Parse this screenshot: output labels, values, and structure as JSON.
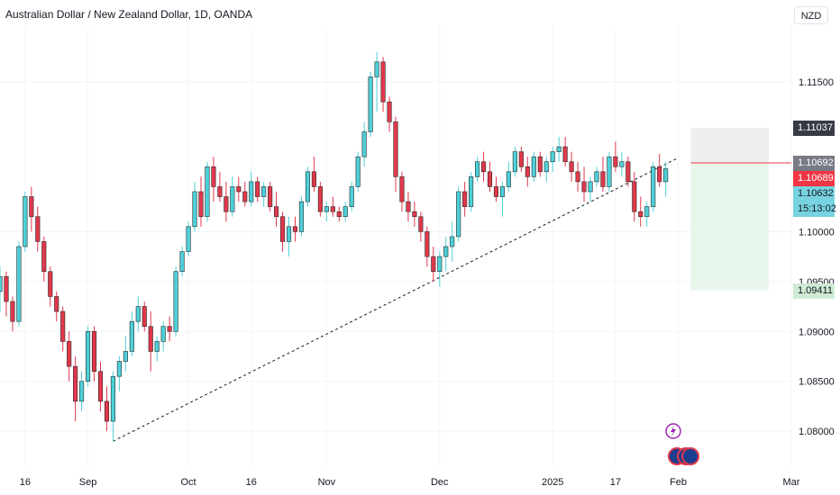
{
  "title": "Australian Dollar / New Zealand Dollar, 1D, OANDA",
  "currency": "NZD",
  "chart_data": {
    "type": "candlestick",
    "ylim": [
      1.0765,
      1.1205
    ],
    "y_ticks": [
      {
        "value": 1.115,
        "label": "1.11500"
      },
      {
        "value": 1.1,
        "label": "1.10000"
      },
      {
        "value": 1.095,
        "label": "1.09500"
      },
      {
        "value": 1.09,
        "label": "1.09000"
      },
      {
        "value": 1.085,
        "label": "1.08500"
      },
      {
        "value": 1.08,
        "label": "1.08000"
      }
    ],
    "x_ticks": [
      {
        "index": 4,
        "label": "16"
      },
      {
        "index": 14,
        "label": "Sep"
      },
      {
        "index": 30,
        "label": "Oct"
      },
      {
        "index": 40,
        "label": "16"
      },
      {
        "index": 52,
        "label": "Nov"
      },
      {
        "index": 70,
        "label": "Dec"
      },
      {
        "index": 88,
        "label": "2025"
      },
      {
        "index": 98,
        "label": "17"
      },
      {
        "index": 108,
        "label": "Feb"
      },
      {
        "index": 126,
        "label": "Mar"
      }
    ],
    "price_tags": [
      {
        "value": 1.11037,
        "label": "1.11037",
        "bg": "#363a45",
        "fg": "#ffffff"
      },
      {
        "value": 1.10692,
        "label": "1.10692",
        "bg": "#787b86",
        "fg": "#ffffff"
      },
      {
        "value": 1.10689,
        "label": "1.10689",
        "bg": "#f23645",
        "fg": "#ffffff"
      },
      {
        "value": 1.10632,
        "label": "1.10632",
        "sub": "15:13:02",
        "bg": "#77d3e0",
        "fg": "#131722"
      },
      {
        "value": 1.09411,
        "label": "1.09411",
        "bg": "#cfead3",
        "fg": "#131722"
      }
    ],
    "position": {
      "start_index": 110,
      "end_index": 126,
      "entry": 1.10689,
      "target_top": 1.11037,
      "stop_bottom": 1.09411
    },
    "trendline": {
      "points": [
        [
          18,
          1.079
        ],
        [
          108,
          1.1074
        ]
      ]
    },
    "colors": {
      "up": "#4dd0d8",
      "down": "#e0384b",
      "wick_up": "#4dd0d8",
      "wick_down": "#e0384b",
      "outline": "#2b2b2b"
    },
    "candles": [
      [
        1.094,
        1.0965,
        1.092,
        1.0955
      ],
      [
        1.0955,
        1.096,
        1.0915,
        1.093
      ],
      [
        1.093,
        1.0935,
        1.09,
        1.091
      ],
      [
        1.091,
        1.099,
        1.0905,
        1.0985
      ],
      [
        1.0985,
        1.104,
        1.098,
        1.1035
      ],
      [
        1.1035,
        1.1045,
        1.1,
        1.1015
      ],
      [
        1.1015,
        1.1025,
        1.098,
        1.099
      ],
      [
        1.099,
        1.0995,
        1.095,
        1.096
      ],
      [
        1.096,
        1.0965,
        1.0925,
        1.0935
      ],
      [
        1.0935,
        1.094,
        1.091,
        1.092
      ],
      [
        1.092,
        1.0925,
        1.088,
        1.089
      ],
      [
        1.089,
        1.09,
        1.085,
        1.0865
      ],
      [
        1.0865,
        1.0875,
        1.081,
        1.083
      ],
      [
        1.083,
        1.086,
        1.082,
        1.085
      ],
      [
        1.085,
        1.0905,
        1.0845,
        1.09
      ],
      [
        1.09,
        1.0905,
        1.085,
        1.086
      ],
      [
        1.086,
        1.087,
        1.082,
        1.083
      ],
      [
        1.083,
        1.0845,
        1.08,
        1.081
      ],
      [
        1.081,
        1.086,
        1.079,
        1.0855
      ],
      [
        1.0855,
        1.0875,
        1.084,
        1.087
      ],
      [
        1.087,
        1.0895,
        1.086,
        1.088
      ],
      [
        1.088,
        1.092,
        1.0875,
        1.091
      ],
      [
        1.091,
        1.0935,
        1.09,
        1.0925
      ],
      [
        1.0925,
        1.093,
        1.09,
        1.0905
      ],
      [
        1.0905,
        1.092,
        1.086,
        1.088
      ],
      [
        1.088,
        1.0895,
        1.087,
        1.089
      ],
      [
        1.089,
        1.091,
        1.088,
        1.0905
      ],
      [
        1.0905,
        1.0915,
        1.089,
        1.09
      ],
      [
        1.09,
        1.0965,
        1.0895,
        1.096
      ],
      [
        1.096,
        1.0985,
        1.0955,
        1.098
      ],
      [
        1.098,
        1.101,
        1.0975,
        1.1005
      ],
      [
        1.1005,
        1.105,
        1.1,
        1.104
      ],
      [
        1.104,
        1.1055,
        1.1005,
        1.1015
      ],
      [
        1.1015,
        1.107,
        1.101,
        1.1065
      ],
      [
        1.1065,
        1.1075,
        1.103,
        1.1045
      ],
      [
        1.1045,
        1.106,
        1.103,
        1.1035
      ],
      [
        1.1035,
        1.105,
        1.101,
        1.102
      ],
      [
        1.102,
        1.1055,
        1.1015,
        1.1045
      ],
      [
        1.1045,
        1.1055,
        1.103,
        1.104
      ],
      [
        1.104,
        1.105,
        1.1025,
        1.103
      ],
      [
        1.103,
        1.106,
        1.1025,
        1.105
      ],
      [
        1.105,
        1.1055,
        1.103,
        1.1035
      ],
      [
        1.1035,
        1.105,
        1.1025,
        1.1045
      ],
      [
        1.1045,
        1.105,
        1.102,
        1.1025
      ],
      [
        1.1025,
        1.104,
        1.1005,
        1.1015
      ],
      [
        1.1015,
        1.102,
        1.098,
        1.099
      ],
      [
        1.099,
        1.1015,
        1.0975,
        1.1005
      ],
      [
        1.1005,
        1.1015,
        1.099,
        1.1
      ],
      [
        1.1,
        1.1035,
        1.0995,
        1.103
      ],
      [
        1.103,
        1.1065,
        1.1025,
        1.106
      ],
      [
        1.106,
        1.1075,
        1.104,
        1.1045
      ],
      [
        1.1045,
        1.105,
        1.1015,
        1.102
      ],
      [
        1.102,
        1.103,
        1.101,
        1.1025
      ],
      [
        1.1025,
        1.1035,
        1.1015,
        1.102
      ],
      [
        1.102,
        1.1025,
        1.101,
        1.1015
      ],
      [
        1.1015,
        1.103,
        1.101,
        1.1025
      ],
      [
        1.1025,
        1.105,
        1.102,
        1.1045
      ],
      [
        1.1045,
        1.108,
        1.104,
        1.1075
      ],
      [
        1.1075,
        1.111,
        1.1065,
        1.11
      ],
      [
        1.11,
        1.116,
        1.1095,
        1.1155
      ],
      [
        1.1155,
        1.118,
        1.112,
        1.117
      ],
      [
        1.117,
        1.1175,
        1.112,
        1.113
      ],
      [
        1.113,
        1.1135,
        1.11,
        1.111
      ],
      [
        1.111,
        1.1115,
        1.104,
        1.1055
      ],
      [
        1.1055,
        1.106,
        1.102,
        1.103
      ],
      [
        1.103,
        1.104,
        1.101,
        1.102
      ],
      [
        1.102,
        1.103,
        1.1005,
        1.1015
      ],
      [
        1.1015,
        1.102,
        1.099,
        1.1
      ],
      [
        1.1,
        1.1005,
        1.0965,
        1.0975
      ],
      [
        1.0975,
        1.0985,
        1.095,
        1.096
      ],
      [
        1.096,
        1.098,
        1.0945,
        1.0975
      ],
      [
        1.0975,
        1.0995,
        1.096,
        1.0985
      ],
      [
        1.0985,
        1.101,
        1.097,
        1.0995
      ],
      [
        1.0995,
        1.1045,
        1.099,
        1.104
      ],
      [
        1.104,
        1.105,
        1.1015,
        1.1025
      ],
      [
        1.1025,
        1.106,
        1.102,
        1.1055
      ],
      [
        1.1055,
        1.1075,
        1.105,
        1.107
      ],
      [
        1.107,
        1.108,
        1.105,
        1.106
      ],
      [
        1.106,
        1.107,
        1.104,
        1.1045
      ],
      [
        1.1045,
        1.1055,
        1.103,
        1.1035
      ],
      [
        1.1035,
        1.105,
        1.1015,
        1.1045
      ],
      [
        1.1045,
        1.107,
        1.104,
        1.106
      ],
      [
        1.106,
        1.1085,
        1.1055,
        1.108
      ],
      [
        1.108,
        1.1085,
        1.106,
        1.1065
      ],
      [
        1.1065,
        1.1075,
        1.1045,
        1.1055
      ],
      [
        1.1055,
        1.108,
        1.105,
        1.1075
      ],
      [
        1.1075,
        1.108,
        1.1055,
        1.106
      ],
      [
        1.106,
        1.1075,
        1.105,
        1.107
      ],
      [
        1.107,
        1.1085,
        1.106,
        1.108
      ],
      [
        1.108,
        1.1095,
        1.107,
        1.1085
      ],
      [
        1.1085,
        1.1095,
        1.1065,
        1.107
      ],
      [
        1.107,
        1.108,
        1.105,
        1.106
      ],
      [
        1.106,
        1.107,
        1.104,
        1.105
      ],
      [
        1.105,
        1.1065,
        1.103,
        1.104
      ],
      [
        1.104,
        1.1055,
        1.103,
        1.105
      ],
      [
        1.105,
        1.1065,
        1.1045,
        1.106
      ],
      [
        1.106,
        1.1075,
        1.104,
        1.1045
      ],
      [
        1.1045,
        1.108,
        1.104,
        1.1075
      ],
      [
        1.1075,
        1.109,
        1.106,
        1.1065
      ],
      [
        1.1065,
        1.108,
        1.1055,
        1.107
      ],
      [
        1.107,
        1.1075,
        1.1045,
        1.105
      ],
      [
        1.105,
        1.106,
        1.101,
        1.102
      ],
      [
        1.102,
        1.1035,
        1.1005,
        1.1015
      ],
      [
        1.1015,
        1.103,
        1.1005,
        1.1025
      ],
      [
        1.1025,
        1.107,
        1.102,
        1.1065
      ],
      [
        1.1065,
        1.1078,
        1.1045,
        1.105
      ],
      [
        1.105,
        1.107,
        1.1035,
        1.1063
      ]
    ]
  }
}
